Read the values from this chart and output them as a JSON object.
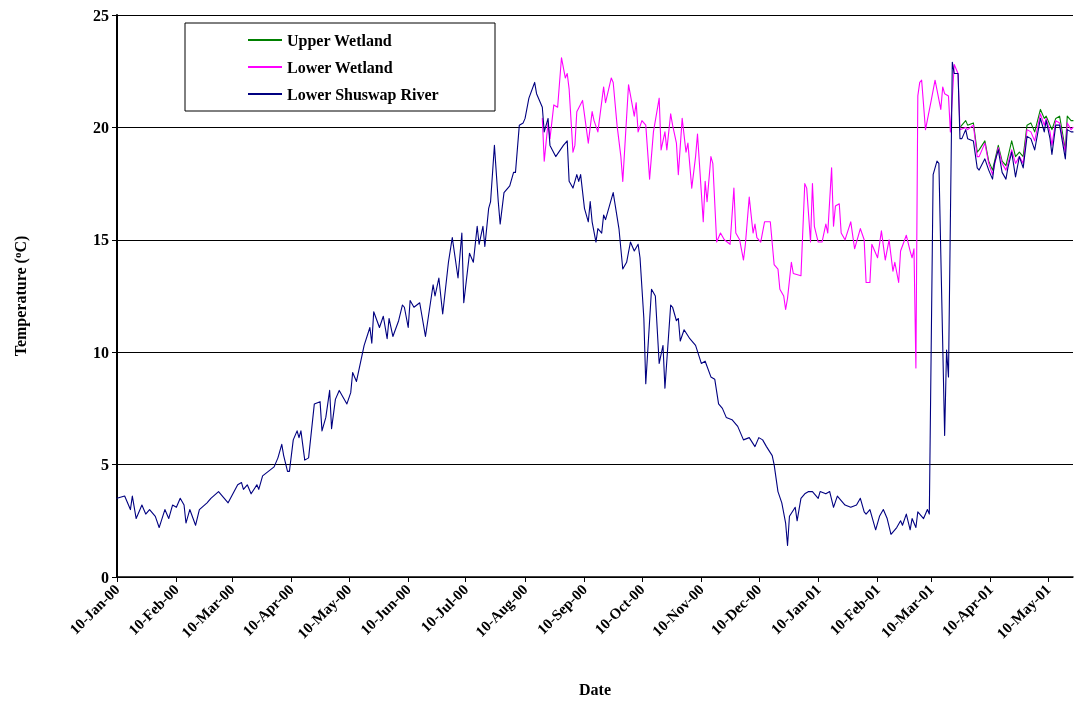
{
  "chart_data": {
    "type": "line",
    "xlabel": "Date",
    "ylabel": "Temperature ($^{o}$C)",
    "xlim": [
      "2000-01-10",
      "2001-05-23"
    ],
    "xticks": [
      {
        "value": "2000-01-10",
        "label": "10-Jan-00"
      },
      {
        "value": "2000-02-10",
        "label": "10-Feb-00"
      },
      {
        "value": "2000-03-10",
        "label": "10-Mar-00"
      },
      {
        "value": "2000-04-10",
        "label": "10-Apr-00"
      },
      {
        "value": "2000-05-10",
        "label": "10-May-00"
      },
      {
        "value": "2000-06-10",
        "label": "10-Jun-00"
      },
      {
        "value": "2000-07-10",
        "label": "10-Jul-00"
      },
      {
        "value": "2000-08-10",
        "label": "10-Aug-00"
      },
      {
        "value": "2000-09-10",
        "label": "10-Sep-00"
      },
      {
        "value": "2000-10-10",
        "label": "10-Oct-00"
      },
      {
        "value": "2000-11-10",
        "label": "10-Nov-00"
      },
      {
        "value": "2000-12-10",
        "label": "10-Dec-00"
      },
      {
        "value": "2001-01-10",
        "label": "10-Jan-01"
      },
      {
        "value": "2001-02-10",
        "label": "10-Feb-01"
      },
      {
        "value": "2001-03-10",
        "label": "10-Mar-01"
      },
      {
        "value": "2001-04-10",
        "label": "10-Apr-01"
      },
      {
        "value": "2001-05-10",
        "label": "10-May-01"
      }
    ],
    "ylim": [
      0,
      25
    ],
    "yticks": [
      0,
      5,
      10,
      15,
      20,
      25
    ],
    "grid": "y",
    "legend": "top left",
    "marker": "none",
    "line_style": "solid",
    "series": [
      {
        "name": "Upper Wetland",
        "color": "#008000",
        "x": [
          "2001-03-25",
          "2001-03-28",
          "2001-03-29",
          "2001-04-01",
          "2001-04-03",
          "2001-04-04",
          "2001-04-07",
          "2001-04-09",
          "2001-04-11",
          "2001-04-14",
          "2001-04-16",
          "2001-04-18",
          "2001-04-21",
          "2001-04-23",
          "2001-04-25",
          "2001-04-27",
          "2001-04-29",
          "2001-05-01",
          "2001-05-03",
          "2001-05-06",
          "2001-05-08",
          "2001-05-09",
          "2001-05-11",
          "2001-05-12",
          "2001-05-14",
          "2001-05-16",
          "2001-05-19",
          "2001-05-20",
          "2001-05-22",
          "2001-05-23"
        ],
        "values": [
          20.0,
          20.3,
          20.1,
          20.2,
          18.9,
          19.0,
          19.4,
          18.5,
          18.1,
          19.2,
          18.5,
          18.3,
          19.4,
          18.7,
          18.9,
          18.7,
          20.1,
          20.2,
          19.8,
          20.8,
          20.4,
          20.5,
          20.1,
          19.9,
          20.4,
          20.5,
          19.0,
          20.5,
          20.3,
          20.3
        ]
      },
      {
        "name": "Lower Wetland",
        "color": "#ff00ff",
        "x": [
          "2000-08-19",
          "2000-08-20",
          "2000-08-22",
          "2000-08-23",
          "2000-08-25",
          "2000-08-27",
          "2000-08-29",
          "2000-08-31",
          "2000-09-01",
          "2000-09-02",
          "2000-09-04",
          "2000-09-05",
          "2000-09-06",
          "2000-09-09",
          "2000-09-12",
          "2000-09-14",
          "2000-09-15",
          "2000-09-17",
          "2000-09-20",
          "2000-09-21",
          "2000-09-24",
          "2000-09-25",
          "2000-09-27",
          "2000-09-29",
          "2000-09-30",
          "2000-10-03",
          "2000-10-06",
          "2000-10-07",
          "2000-10-08",
          "2000-10-10",
          "2000-10-12",
          "2000-10-14",
          "2000-10-16",
          "2000-10-19",
          "2000-10-20",
          "2000-10-22",
          "2000-10-23",
          "2000-10-25",
          "2000-10-26",
          "2000-10-28",
          "2000-10-29",
          "2000-10-31",
          "2000-11-02",
          "2000-11-03",
          "2000-11-05",
          "2000-11-07",
          "2000-11-08",
          "2000-11-11",
          "2000-11-12",
          "2000-11-13",
          "2000-11-15",
          "2000-11-16",
          "2000-11-18",
          "2000-11-20",
          "2000-11-22",
          "2000-11-25",
          "2000-11-27",
          "2000-11-28",
          "2000-11-30",
          "2000-12-02",
          "2000-12-03",
          "2000-12-05",
          "2000-12-07",
          "2000-12-08",
          "2000-12-09",
          "2000-12-11",
          "2000-12-13",
          "2000-12-16",
          "2000-12-18",
          "2000-12-20",
          "2000-12-21",
          "2000-12-23",
          "2000-12-24",
          "2000-12-25",
          "2000-12-27",
          "2000-12-28",
          "2001-01-01",
          "2001-01-03",
          "2001-01-04",
          "2001-01-06",
          "2001-01-07",
          "2001-01-08",
          "2001-01-10",
          "2001-01-12",
          "2001-01-14",
          "2001-01-15",
          "2001-01-17",
          "2001-01-18",
          "2001-01-19",
          "2001-01-21",
          "2001-01-22",
          "2001-01-24",
          "2001-01-27",
          "2001-01-29",
          "2001-02-01",
          "2001-02-03",
          "2001-02-04",
          "2001-02-06",
          "2001-02-07",
          "2001-02-10",
          "2001-02-12",
          "2001-02-14",
          "2001-02-16",
          "2001-02-18",
          "2001-02-19",
          "2001-02-21",
          "2001-02-22",
          "2001-02-25",
          "2001-02-27",
          "2001-02-28",
          "2001-03-01",
          "2001-03-02",
          "2001-03-03",
          "2001-03-04",
          "2001-03-05",
          "2001-03-07",
          "2001-03-10",
          "2001-03-12",
          "2001-03-15",
          "2001-03-16",
          "2001-03-17",
          "2001-03-19",
          "2001-03-20",
          "2001-03-22",
          "2001-03-24",
          "2001-03-25",
          "2001-03-28",
          "2001-03-29",
          "2001-04-01",
          "2001-04-03",
          "2001-04-04",
          "2001-04-07",
          "2001-04-09",
          "2001-04-11",
          "2001-04-13",
          "2001-04-14",
          "2001-04-16",
          "2001-04-18",
          "2001-04-21",
          "2001-04-23",
          "2001-04-25",
          "2001-04-27",
          "2001-04-29",
          "2001-05-01",
          "2001-05-03",
          "2001-05-06",
          "2001-05-08",
          "2001-05-09",
          "2001-05-11",
          "2001-05-12",
          "2001-05-14",
          "2001-05-16",
          "2001-05-19",
          "2001-05-20",
          "2001-05-22",
          "2001-05-23"
        ],
        "values": [
          20.4,
          18.5,
          20.2,
          19.5,
          21.0,
          20.9,
          23.1,
          22.2,
          22.4,
          21.7,
          18.9,
          19.2,
          20.7,
          21.2,
          19.3,
          20.7,
          20.3,
          19.8,
          21.8,
          21.1,
          22.2,
          22.0,
          20.1,
          18.7,
          17.6,
          21.9,
          20.5,
          21.1,
          19.8,
          20.3,
          20.1,
          17.7,
          19.8,
          21.3,
          19.0,
          19.8,
          19.0,
          20.6,
          20.1,
          19.3,
          17.9,
          20.4,
          18.9,
          19.3,
          17.3,
          18.7,
          19.7,
          15.8,
          17.6,
          16.7,
          18.7,
          18.4,
          14.9,
          15.3,
          15.0,
          14.8,
          17.3,
          15.3,
          15.0,
          14.1,
          14.8,
          16.9,
          15.3,
          15.7,
          15.1,
          14.9,
          15.8,
          15.8,
          13.9,
          13.7,
          12.8,
          12.5,
          11.9,
          12.4,
          14.0,
          13.5,
          13.4,
          17.5,
          17.3,
          14.9,
          17.5,
          15.6,
          14.9,
          14.9,
          15.7,
          15.3,
          18.2,
          15.6,
          16.5,
          16.6,
          15.3,
          15.0,
          15.8,
          14.6,
          15.5,
          15.0,
          13.1,
          13.1,
          14.8,
          14.2,
          15.4,
          14.1,
          15.0,
          13.6,
          14.0,
          13.1,
          14.5,
          15.2,
          14.5,
          14.2,
          14.6,
          9.3,
          21.4,
          22.0,
          22.1,
          19.9,
          21.2,
          22.1,
          20.8,
          21.8,
          21.5,
          21.4,
          19.8,
          22.8,
          22.4,
          19.9,
          20.0,
          19.9,
          20.1,
          18.7,
          18.7,
          19.3,
          18.4,
          17.9,
          18.7,
          19.1,
          18.4,
          18.1,
          19.0,
          18.4,
          18.7,
          18.4,
          19.9,
          19.8,
          19.4,
          20.6,
          20.1,
          20.4,
          19.8,
          19.2,
          20.3,
          20.2,
          18.9,
          20.2,
          19.9,
          20.0
        ]
      },
      {
        "name": "Lower Shuswap River",
        "color": "#000080",
        "x": [
          "2000-01-10",
          "2000-01-14",
          "2000-01-17",
          "2000-01-18",
          "2000-01-20",
          "2000-01-23",
          "2000-01-25",
          "2000-01-27",
          "2000-01-30",
          "2000-02-01",
          "2000-02-04",
          "2000-02-06",
          "2000-02-08",
          "2000-02-10",
          "2000-02-12",
          "2000-02-14",
          "2000-02-15",
          "2000-02-17",
          "2000-02-20",
          "2000-02-22",
          "2000-02-26",
          "2000-02-28",
          "2000-03-03",
          "2000-03-06",
          "2000-03-08",
          "2000-03-13",
          "2000-03-15",
          "2000-03-16",
          "2000-03-18",
          "2000-03-20",
          "2000-03-23",
          "2000-03-24",
          "2000-03-26",
          "2000-03-29",
          "2000-04-01",
          "2000-04-03",
          "2000-04-05",
          "2000-04-06",
          "2000-04-08",
          "2000-04-09",
          "2000-04-11",
          "2000-04-13",
          "2000-04-14",
          "2000-04-15",
          "2000-04-17",
          "2000-04-19",
          "2000-04-22",
          "2000-04-25",
          "2000-04-26",
          "2000-04-28",
          "2000-04-30",
          "2000-05-01",
          "2000-05-03",
          "2000-05-05",
          "2000-05-09",
          "2000-05-11",
          "2000-05-12",
          "2000-05-14",
          "2000-05-18",
          "2000-05-21",
          "2000-05-22",
          "2000-05-23",
          "2000-05-26",
          "2000-05-28",
          "2000-05-30",
          "2000-05-31",
          "2000-06-02",
          "2000-06-05",
          "2000-06-07",
          "2000-06-08",
          "2000-06-10",
          "2000-06-11",
          "2000-06-13",
          "2000-06-16",
          "2000-06-19",
          "2000-06-23",
          "2000-06-24",
          "2000-06-26",
          "2000-06-28",
          "2000-07-01",
          "2000-07-03",
          "2000-07-06",
          "2000-07-08",
          "2000-07-09",
          "2000-07-12",
          "2000-07-14",
          "2000-07-16",
          "2000-07-17",
          "2000-07-19",
          "2000-07-20",
          "2000-07-22",
          "2000-07-23",
          "2000-07-25",
          "2000-07-27",
          "2000-07-28",
          "2000-07-30",
          "2000-08-02",
          "2000-08-04",
          "2000-08-05",
          "2000-08-07",
          "2000-08-09",
          "2000-08-10",
          "2000-08-12",
          "2000-08-15",
          "2000-08-16",
          "2000-08-19",
          "2000-08-20",
          "2000-08-22",
          "2000-08-23",
          "2000-08-26",
          "2000-08-30",
          "2000-09-01",
          "2000-09-02",
          "2000-09-04",
          "2000-09-06",
          "2000-09-07",
          "2000-09-08",
          "2000-09-10",
          "2000-09-12",
          "2000-09-13",
          "2000-09-14",
          "2000-09-16",
          "2000-09-17",
          "2000-09-19",
          "2000-09-20",
          "2000-09-21",
          "2000-09-23",
          "2000-09-25",
          "2000-09-28",
          "2000-09-30",
          "2000-10-02",
          "2000-10-04",
          "2000-10-06",
          "2000-10-08",
          "2000-10-09",
          "2000-10-11",
          "2000-10-12",
          "2000-10-15",
          "2000-10-17",
          "2000-10-19",
          "2000-10-21",
          "2000-10-22",
          "2000-10-25",
          "2000-10-26",
          "2000-10-28",
          "2000-10-29",
          "2000-10-30",
          "2000-11-01",
          "2000-11-04",
          "2000-11-07",
          "2000-11-10",
          "2000-11-12",
          "2000-11-15",
          "2000-11-17",
          "2000-11-19",
          "2000-11-21",
          "2000-11-23",
          "2000-11-26",
          "2000-11-29",
          "2000-12-02",
          "2000-12-05",
          "2000-12-08",
          "2000-12-10",
          "2000-12-12",
          "2000-12-14",
          "2000-12-17",
          "2000-12-18",
          "2000-12-20",
          "2000-12-22",
          "2000-12-24",
          "2000-12-25",
          "2000-12-26",
          "2000-12-29",
          "2000-12-30",
          "2001-01-01",
          "2001-01-03",
          "2001-01-05",
          "2001-01-07",
          "2001-01-10",
          "2001-01-11",
          "2001-01-14",
          "2001-01-16",
          "2001-01-18",
          "2001-01-20",
          "2001-01-24",
          "2001-01-27",
          "2001-01-30",
          "2001-02-01",
          "2001-02-03",
          "2001-02-04",
          "2001-02-06",
          "2001-02-09",
          "2001-02-11",
          "2001-02-13",
          "2001-02-15",
          "2001-02-17",
          "2001-02-20",
          "2001-02-22",
          "2001-02-23",
          "2001-02-25",
          "2001-02-27",
          "2001-02-28",
          "2001-03-02",
          "2001-03-03",
          "2001-03-06",
          "2001-03-08",
          "2001-03-09",
          "2001-03-11",
          "2001-03-13",
          "2001-03-14",
          "2001-03-17",
          "2001-03-18",
          "2001-03-19",
          "2001-03-21",
          "2001-03-22",
          "2001-03-24",
          "2001-03-25",
          "2001-03-26",
          "2001-03-28",
          "2001-03-29",
          "2001-04-01",
          "2001-04-03",
          "2001-04-04",
          "2001-04-07",
          "2001-04-09",
          "2001-04-11",
          "2001-04-12",
          "2001-04-14",
          "2001-04-16",
          "2001-04-18",
          "2001-04-19",
          "2001-04-21",
          "2001-04-23",
          "2001-04-25",
          "2001-04-27",
          "2001-04-29",
          "2001-05-01",
          "2001-05-03",
          "2001-05-06",
          "2001-05-08",
          "2001-05-09",
          "2001-05-11",
          "2001-05-12",
          "2001-05-14",
          "2001-05-16",
          "2001-05-19",
          "2001-05-20",
          "2001-05-22",
          "2001-05-23"
        ],
        "values": [
          3.5,
          3.6,
          3.0,
          3.6,
          2.6,
          3.2,
          2.8,
          3.0,
          2.7,
          2.2,
          3.0,
          2.6,
          3.2,
          3.1,
          3.5,
          3.2,
          2.4,
          3.0,
          2.3,
          3.0,
          3.3,
          3.5,
          3.8,
          3.5,
          3.3,
          4.1,
          4.2,
          3.9,
          4.1,
          3.7,
          4.1,
          3.9,
          4.5,
          4.7,
          4.9,
          5.3,
          5.9,
          5.4,
          4.7,
          4.7,
          6.1,
          6.5,
          6.2,
          6.5,
          5.2,
          5.3,
          7.7,
          7.8,
          6.5,
          7.1,
          8.3,
          6.6,
          7.9,
          8.3,
          7.7,
          8.2,
          9.1,
          8.7,
          10.3,
          11.1,
          10.4,
          11.8,
          11.1,
          11.6,
          10.6,
          11.5,
          10.7,
          11.4,
          12.1,
          12.0,
          11.1,
          12.3,
          12.0,
          12.2,
          10.7,
          13.0,
          12.5,
          13.3,
          11.7,
          14.0,
          15.1,
          13.3,
          15.3,
          12.2,
          14.4,
          14.0,
          15.6,
          14.8,
          15.6,
          14.7,
          16.4,
          16.7,
          19.2,
          16.7,
          15.7,
          17.1,
          17.4,
          18.0,
          18.0,
          20.1,
          20.2,
          20.4,
          21.3,
          22.0,
          21.5,
          20.9,
          19.8,
          20.4,
          19.2,
          18.7,
          19.2,
          19.4,
          17.6,
          17.3,
          17.9,
          17.6,
          17.9,
          16.4,
          15.8,
          16.7,
          15.8,
          14.9,
          15.5,
          15.3,
          16.1,
          15.9,
          16.5,
          17.1,
          15.5,
          13.7,
          14.0,
          14.9,
          14.5,
          14.8,
          14.2,
          11.5,
          8.6,
          12.8,
          12.5,
          9.5,
          10.3,
          8.4,
          12.1,
          12.0,
          11.4,
          11.5,
          10.5,
          11.0,
          10.6,
          10.3,
          9.5,
          9.6,
          8.9,
          8.8,
          7.7,
          7.5,
          7.1,
          7.0,
          6.7,
          6.1,
          6.2,
          5.8,
          6.2,
          6.1,
          5.8,
          5.4,
          5.0,
          3.8,
          3.3,
          2.4,
          1.4,
          2.7,
          3.1,
          2.5,
          3.5,
          3.7,
          3.8,
          3.8,
          3.5,
          3.8,
          3.7,
          3.8,
          3.1,
          3.6,
          3.2,
          3.1,
          3.2,
          3.5,
          2.9,
          2.8,
          3.0,
          2.1,
          2.7,
          3.0,
          2.6,
          1.9,
          2.2,
          2.5,
          2.3,
          2.8,
          2.1,
          2.6,
          2.2,
          2.9,
          2.6,
          3.0,
          2.8,
          17.9,
          18.5,
          18.4,
          6.3,
          10.1,
          8.9,
          22.9,
          22.4,
          22.4,
          19.5,
          19.5,
          19.9,
          19.5,
          19.4,
          18.2,
          18.1,
          18.6,
          18.1,
          17.7,
          18.4,
          19.0,
          18.0,
          17.7,
          18.2,
          18.9,
          17.8,
          18.7,
          18.2,
          19.6,
          19.5,
          19.0,
          20.4,
          19.8,
          20.3,
          19.5,
          18.8,
          20.1,
          20.1,
          18.6,
          19.9,
          19.8,
          19.8
        ]
      }
    ]
  }
}
